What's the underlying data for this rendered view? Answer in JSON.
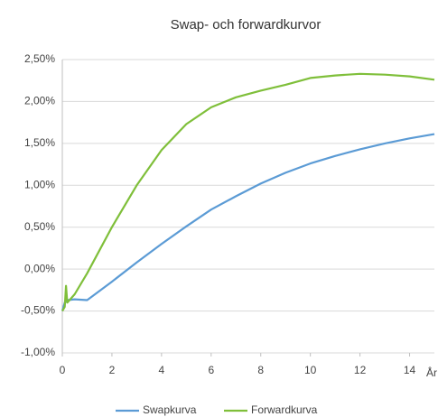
{
  "chart_data": {
    "type": "line",
    "title": "Swap- och forwardkurvor",
    "x_label": "År",
    "xlim": [
      0,
      15
    ],
    "xticks": [
      0,
      2,
      4,
      6,
      8,
      10,
      12,
      14
    ],
    "ylim": [
      -1,
      2.5
    ],
    "yticks": [
      {
        "value": -1,
        "label": "-1,00%"
      },
      {
        "value": -0.5,
        "label": "-0,50%"
      },
      {
        "value": 0,
        "label": "0,00%"
      },
      {
        "value": 0.5,
        "label": "0,50%"
      },
      {
        "value": 1,
        "label": "1,00%"
      },
      {
        "value": 1.5,
        "label": "1,50%"
      },
      {
        "value": 2,
        "label": "2,00%"
      },
      {
        "value": 2.5,
        "label": "2,50%"
      }
    ],
    "grid": true,
    "legend": "bottom",
    "series": [
      {
        "name": "Swapkurva",
        "color": "#5b9bd5",
        "x": [
          0,
          0.1,
          0.2,
          0.5,
          1,
          2,
          3,
          4,
          5,
          6,
          7,
          8,
          9,
          10,
          11,
          12,
          13,
          14,
          15
        ],
        "values": [
          -0.5,
          -0.4,
          -0.37,
          -0.36,
          -0.37,
          -0.15,
          0.08,
          0.3,
          0.51,
          0.71,
          0.87,
          1.02,
          1.15,
          1.26,
          1.35,
          1.43,
          1.5,
          1.56,
          1.61
        ]
      },
      {
        "name": "Forwardkurva",
        "color": "#7fbf3a",
        "x": [
          0,
          0.1,
          0.15,
          0.2,
          0.5,
          1,
          2,
          3,
          4,
          5,
          6,
          7,
          8,
          9,
          10,
          11,
          12,
          13,
          14,
          15
        ],
        "values": [
          -0.5,
          -0.45,
          -0.2,
          -0.4,
          -0.3,
          -0.05,
          0.5,
          1.0,
          1.42,
          1.73,
          1.93,
          2.05,
          2.13,
          2.2,
          2.28,
          2.31,
          2.33,
          2.32,
          2.3,
          2.26
        ]
      }
    ]
  }
}
